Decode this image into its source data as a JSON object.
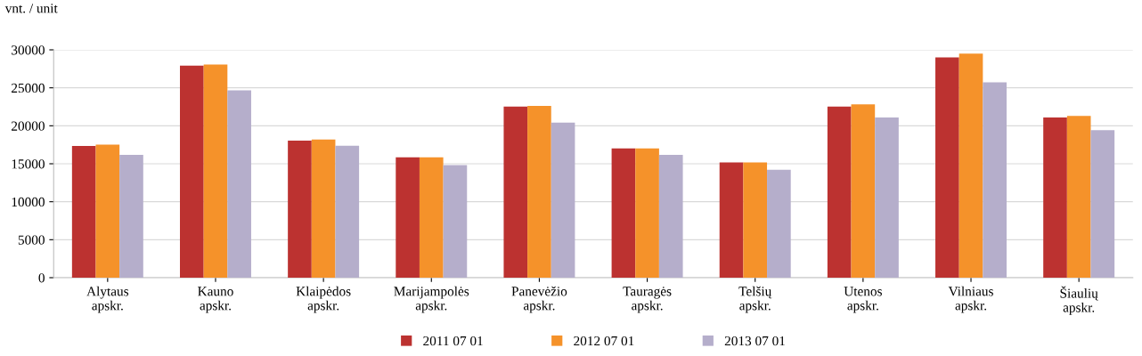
{
  "chart_data": {
    "type": "bar",
    "ylabel": "vnt. / unit",
    "categories": [
      "Alytaus\napskr.",
      "Kauno\napskr.",
      "Klaipėdos\napskr.",
      "Marijampolės\napskr.",
      "Panevėžio\napskr.",
      "Tauragės\napskr.",
      "Telšių\napskr.",
      "Utenos\napskr.",
      "Vilniaus\napskr.",
      "Šiaulių\napskr."
    ],
    "series": [
      {
        "name": "2011 07 01",
        "color": "#bc3230",
        "values": [
          17340,
          27930,
          18050,
          15850,
          22520,
          17020,
          15180,
          22520,
          28990,
          21100
        ]
      },
      {
        "name": "2012 07 01",
        "color": "#f5922a",
        "values": [
          17530,
          28080,
          18200,
          15850,
          22630,
          17020,
          15180,
          22820,
          29490,
          21290
        ]
      },
      {
        "name": "2013 07 01",
        "color": "#b5aecb",
        "values": [
          16160,
          24670,
          17370,
          14820,
          20430,
          16160,
          14200,
          21100,
          25730,
          19410
        ]
      }
    ],
    "ylim": [
      0,
      30000
    ],
    "yticks": [
      0,
      5000,
      10000,
      15000,
      20000,
      25000,
      30000
    ],
    "grid": "y",
    "legend": "bottom"
  }
}
